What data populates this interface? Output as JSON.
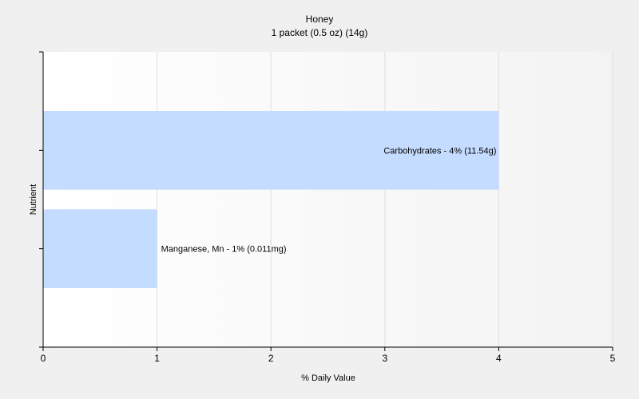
{
  "chart_data": {
    "type": "bar",
    "orientation": "horizontal",
    "title": "Honey",
    "subtitle": "1 packet (0.5 oz) (14g)",
    "xlabel": "% Daily Value",
    "ylabel": "Nutrient",
    "xlim": [
      0,
      5
    ],
    "xticks": [
      "0",
      "1",
      "2",
      "3",
      "4",
      "5"
    ],
    "grid": true,
    "categories": [
      "Carbohydrates",
      "Manganese, Mn"
    ],
    "values": [
      4,
      1
    ],
    "labels": [
      "Carbohydrates - 4% (11.54g)",
      "Manganese, Mn - 1% (0.011mg)"
    ],
    "colors": {
      "bar": "#c4dcff",
      "grid": "#e0e0e0",
      "axis": "#000000",
      "background": "#f0f0f0",
      "plot": "#ffffff"
    }
  }
}
